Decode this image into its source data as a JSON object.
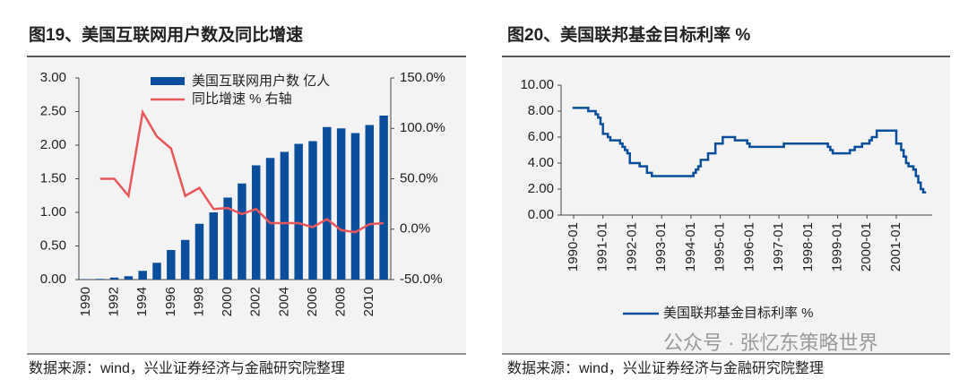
{
  "chart_data": [
    {
      "type": "bar",
      "title": "图19、美国互联网用户数及同比增速",
      "source": "数据来源：wind，兴业证券经济与金融研究院整理",
      "categories": [
        "1990",
        null,
        "1992",
        null,
        "1994",
        null,
        "1996",
        null,
        "1998",
        null,
        "2000",
        null,
        "2002",
        null,
        "2004",
        null,
        "2006",
        null,
        "2008",
        null,
        "2010",
        null
      ],
      "series": [
        {
          "name": "美国互联网用户数 亿人",
          "color": "#0b4f9c",
          "values": [
            0.005,
            0.01,
            0.03,
            0.05,
            0.13,
            0.25,
            0.44,
            0.59,
            0.83,
            1.0,
            1.22,
            1.43,
            1.7,
            1.81,
            1.9,
            2.02,
            2.06,
            2.27,
            2.25,
            2.18,
            2.3,
            2.44
          ]
        },
        {
          "name": "同比增速 % 右轴",
          "color": "#e8575a",
          "axis": "y2",
          "values": [
            null,
            50,
            50,
            33,
            116,
            92,
            80,
            33,
            41,
            20,
            21,
            15,
            20,
            6,
            6,
            6,
            2,
            10,
            -1,
            -3,
            5,
            6
          ]
        }
      ],
      "ylim": [
        0,
        3
      ],
      "yticks": [
        {
          "value": 0,
          "label": "0.00"
        },
        {
          "value": 0.5,
          "label": "0.50"
        },
        {
          "value": 1,
          "label": "1.00"
        },
        {
          "value": 1.5,
          "label": "1.50"
        },
        {
          "value": 2,
          "label": "2.00"
        },
        {
          "value": 2.5,
          "label": "2.50"
        },
        {
          "value": 3,
          "label": "3.00"
        }
      ],
      "y2lim": [
        -50,
        150
      ],
      "y2ticks": [
        {
          "value": -50,
          "label": "-50.0%"
        },
        {
          "value": 0,
          "label": "0.0%"
        },
        {
          "value": 50,
          "label": "50.0%"
        },
        {
          "value": 100,
          "label": "100.0%"
        },
        {
          "value": 150,
          "label": "150.0%"
        }
      ],
      "legend": "top"
    },
    {
      "type": "line",
      "title": "图20、美国联邦基金目标利率 %",
      "source": "数据来源：wind，兴业证券经济与金融研究院整理",
      "x": [
        "1990-01",
        "1990-07",
        "1990-10",
        "1990-11",
        "1990-12",
        "1991-01",
        "1991-03",
        "1991-04",
        "1991-08",
        "1991-09",
        "1991-10",
        "1991-11",
        "1991-12",
        "1992-04",
        "1992-07",
        "1992-09",
        "1994-02",
        "1994-03",
        "1994-04",
        "1994-05",
        "1994-08",
        "1994-11",
        "1995-02",
        "1995-07",
        "1995-12",
        "1996-01",
        "1997-03",
        "1998-09",
        "1998-10",
        "1998-11",
        "1999-06",
        "1999-08",
        "1999-11",
        "2000-02",
        "2000-03",
        "2000-05",
        "2001-01",
        "2001-03",
        "2001-04",
        "2001-05",
        "2001-06",
        "2001-08",
        "2001-09",
        "2001-10",
        "2001-11",
        "2001-12"
      ],
      "series": [
        {
          "name": "美国联邦基金目标利率 %",
          "color": "#0b4f9c",
          "values": [
            8.25,
            8.0,
            7.75,
            7.5,
            7.0,
            6.25,
            6.0,
            5.75,
            5.5,
            5.25,
            5.0,
            4.75,
            4.0,
            3.75,
            3.25,
            3.0,
            3.25,
            3.5,
            3.75,
            4.25,
            4.75,
            5.5,
            6.0,
            5.75,
            5.5,
            5.25,
            5.5,
            5.25,
            5.0,
            4.75,
            5.0,
            5.25,
            5.5,
            5.75,
            6.0,
            6.5,
            5.5,
            5.0,
            4.5,
            4.0,
            3.75,
            3.5,
            3.0,
            2.5,
            2.0,
            1.75
          ]
        }
      ],
      "xlim": [
        "1990-01",
        "2001-12"
      ],
      "xticks": [
        "1990-01",
        "1991-01",
        "1992-01",
        "1993-01",
        "1994-01",
        "1995-01",
        "1996-01",
        "1997-01",
        "1998-01",
        "1999-01",
        "2000-01",
        "2001-01"
      ],
      "ylim": [
        0,
        10
      ],
      "yticks": [
        {
          "value": 0,
          "label": "0.00"
        },
        {
          "value": 2,
          "label": "2.00"
        },
        {
          "value": 4,
          "label": "4.00"
        },
        {
          "value": 6,
          "label": "6.00"
        },
        {
          "value": 8,
          "label": "8.00"
        },
        {
          "value": 10,
          "label": "10.00"
        }
      ],
      "legend": "bottom"
    }
  ],
  "watermark": "公众号 · 张忆东策略世界"
}
